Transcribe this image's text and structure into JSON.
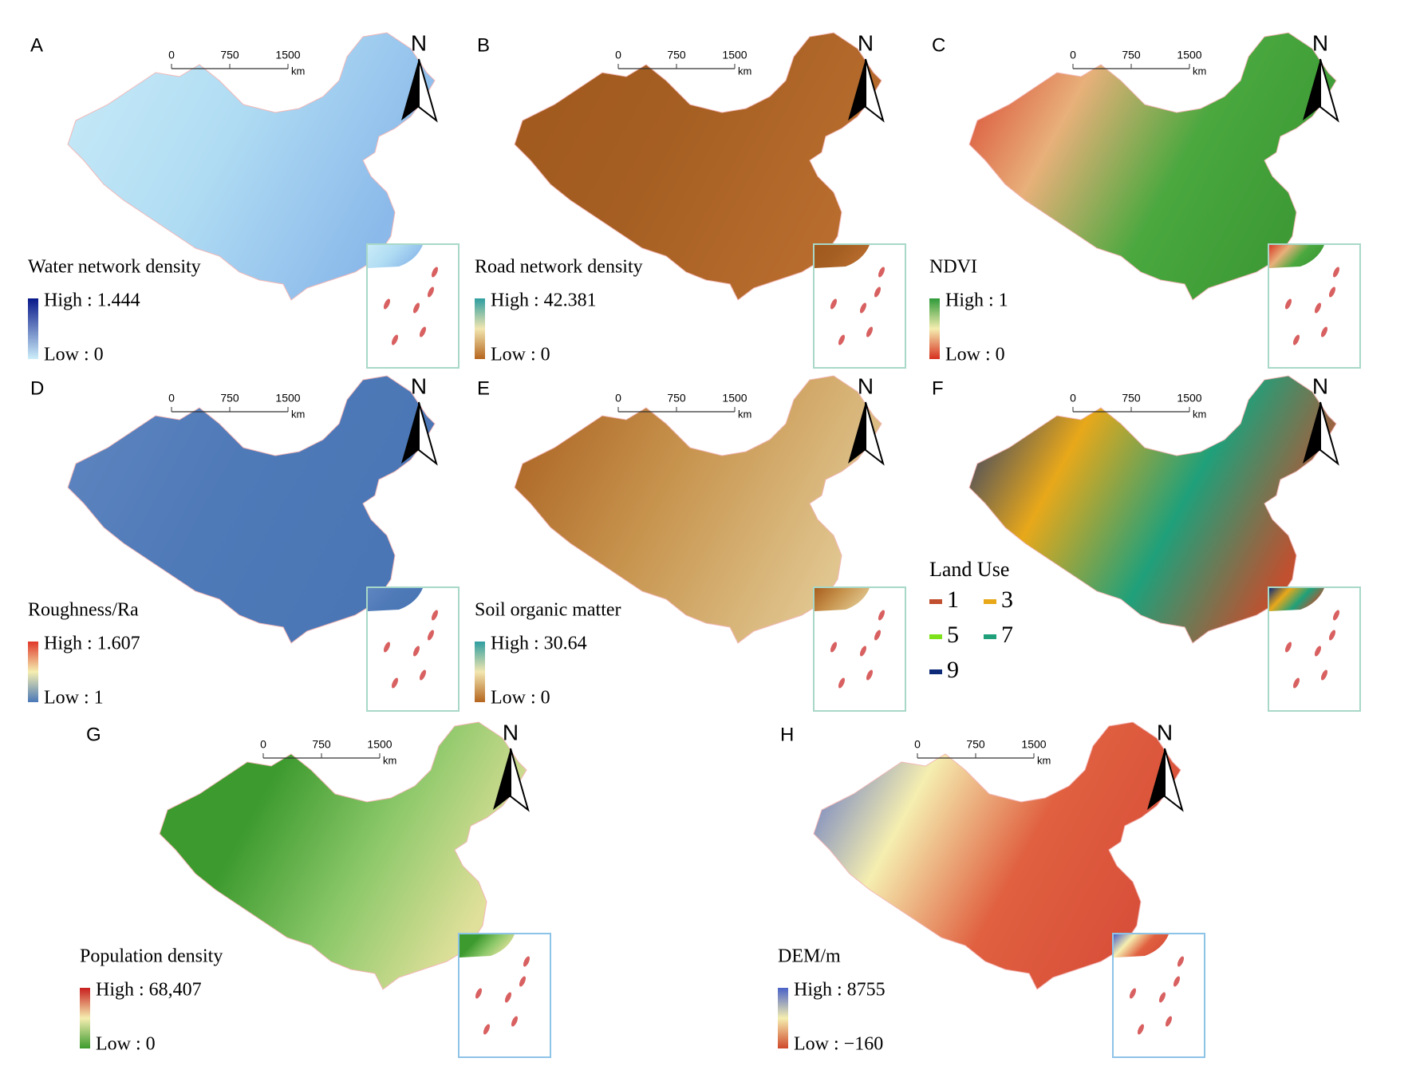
{
  "scale_bar": {
    "ticks": [
      "0",
      "750",
      "1500"
    ],
    "unit": "km"
  },
  "north_label": "N",
  "panels": [
    {
      "letter": "A",
      "legend_title": "Water network density",
      "high": "High : 1.444",
      "low": "Low : 0",
      "legend_colors": [
        "#08188a",
        "#cdeefa"
      ],
      "map_colors": [
        "#c9ecf8",
        "#b0dcf3",
        "#8ab9ea"
      ],
      "inset_color": "#a8d8c8"
    },
    {
      "letter": "B",
      "legend_title": "Road network density",
      "high": "High : 42.381",
      "low": "Low : 0",
      "legend_colors": [
        "#2e9ea0",
        "#f2e6b0",
        "#b5651d"
      ],
      "map_colors": [
        "#a0581c",
        "#a65f22",
        "#b86d2e"
      ],
      "inset_color": "#a8d8c8"
    },
    {
      "letter": "C",
      "legend_title": "NDVI",
      "high": "High : 1",
      "low": "Low : 0",
      "legend_colors": [
        "#2e9a3a",
        "#f5eeb0",
        "#d7301f"
      ],
      "map_colors": [
        "#d73a28",
        "#e8b07a",
        "#4aa83f",
        "#3d9a35"
      ],
      "inset_color": "#a8d8c8"
    },
    {
      "letter": "D",
      "legend_title": "Roughness/Ra",
      "high": "High : 1.607",
      "low": "Low : 1",
      "legend_colors": [
        "#e0382a",
        "#f5eeb0",
        "#4a78b8"
      ],
      "map_colors": [
        "#5f86c0",
        "#4f7ab8",
        "#4a76b5"
      ],
      "inset_color": "#a8d8c8"
    },
    {
      "letter": "E",
      "legend_title": "Soil organic matter",
      "high": "High : 30.64",
      "low": "Low : 0",
      "legend_colors": [
        "#2e9ea0",
        "#f2e6b0",
        "#b5651d"
      ],
      "map_colors": [
        "#a85d1e",
        "#c7944e",
        "#e0c58e"
      ],
      "inset_color": "#a8d8c8"
    },
    {
      "letter": "F",
      "legend_title": "Land Use",
      "classes": [
        {
          "label": "1",
          "color": "#c0502f"
        },
        {
          "label": "3",
          "color": "#e8a81a"
        },
        {
          "label": "5",
          "color": "#7ee21a"
        },
        {
          "label": "7",
          "color": "#1fa07a"
        },
        {
          "label": "9",
          "color": "#0c2a78"
        }
      ],
      "map_colors": [
        "#0c2a78",
        "#e8a81a",
        "#1fa07a",
        "#c0502f"
      ],
      "inset_color": "#a8d8c8"
    },
    {
      "letter": "G",
      "legend_title": "Population density",
      "high": "High : 68,407",
      "low": "Low : 0",
      "legend_colors": [
        "#c81e1e",
        "#f5eeb0",
        "#3c9a2e"
      ],
      "map_colors": [
        "#3c9a2e",
        "#3c9a2e",
        "#8cc86a",
        "#e0e09a"
      ],
      "inset_color": "#8ec3e8"
    },
    {
      "letter": "H",
      "legend_title": "DEM/m",
      "high": "High : 8755",
      "low": "Low : −160",
      "legend_colors": [
        "#4a62c8",
        "#f5eeb0",
        "#d0482a"
      ],
      "map_colors": [
        "#4a62c8",
        "#f5eeb0",
        "#e06040",
        "#d9503a"
      ],
      "inset_color": "#8ec3e8"
    }
  ]
}
